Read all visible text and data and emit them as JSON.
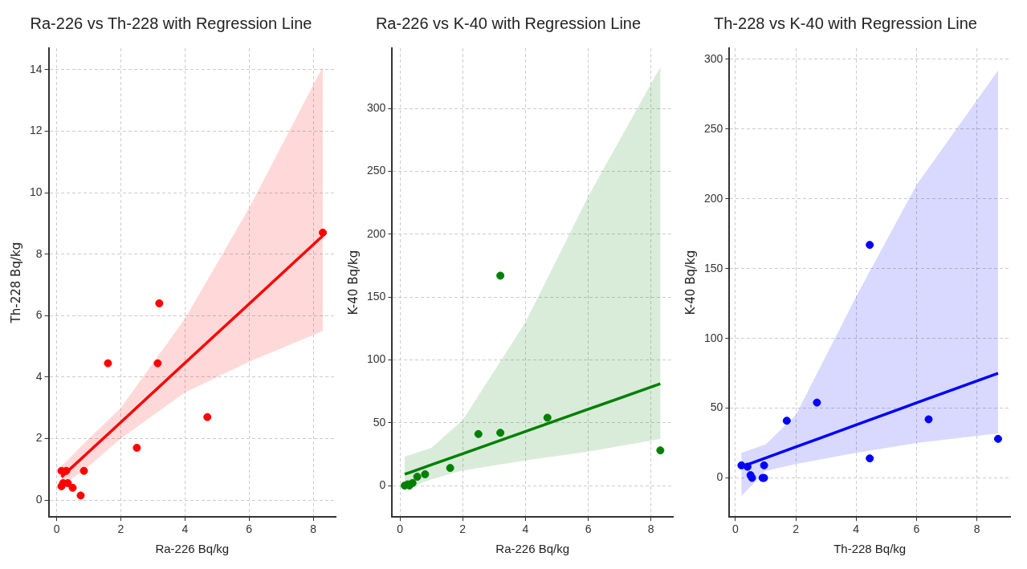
{
  "chart_data": [
    {
      "type": "scatter",
      "title": "Ra-226 vs Th-228 with Regression Line",
      "xlabel": "Ra-226 Bq/kg",
      "ylabel": "Th-228 Bq/kg",
      "xlim": [
        -0.25,
        8.7
      ],
      "ylim": [
        -0.55,
        14.7
      ],
      "xticks": [
        0,
        2,
        4,
        6,
        8
      ],
      "yticks": [
        0,
        2,
        4,
        6,
        8,
        10,
        12,
        14
      ],
      "grid": true,
      "legend": false,
      "series": [
        {
          "type": "scatter",
          "marker": "circle",
          "color": "#ff0000",
          "x": [
            8.3,
            3.2,
            1.6,
            3.15,
            4.7,
            2.5,
            0.85,
            0.75,
            0.5,
            0.35,
            0.15,
            0.3,
            0.15,
            0.2
          ],
          "values": [
            8.7,
            6.4,
            4.45,
            4.45,
            2.7,
            1.7,
            0.95,
            0.15,
            0.4,
            0.55,
            0.95,
            0.95,
            0.45,
            0.55
          ]
        },
        {
          "type": "line",
          "color": "#ff0000",
          "x": [
            0.15,
            1,
            2,
            4,
            6,
            8.3
          ],
          "values": [
            0.75,
            1.57,
            2.53,
            4.46,
            6.38,
            8.6
          ],
          "lower": [
            0.45,
            1.1,
            2.0,
            3.5,
            4.5,
            5.5
          ],
          "upper": [
            1.1,
            2.0,
            3.0,
            5.9,
            9.5,
            14.1
          ]
        }
      ]
    },
    {
      "type": "scatter",
      "title": "Ra-226 vs K-40 with Regression Line",
      "xlabel": "Ra-226 Bq/kg",
      "ylabel": "K-40 Bq/kg",
      "xlim": [
        -0.25,
        8.7
      ],
      "ylim": [
        -25,
        348
      ],
      "xticks": [
        0,
        2,
        4,
        6,
        8
      ],
      "yticks": [
        0,
        50,
        100,
        150,
        200,
        250,
        300
      ],
      "grid": true,
      "legend": false,
      "series": [
        {
          "type": "scatter",
          "marker": "circle",
          "color": "#008000",
          "x": [
            8.3,
            3.2,
            4.7,
            3.2,
            2.5,
            1.6,
            0.8,
            0.55,
            0.4,
            0.3,
            0.15,
            0.25
          ],
          "values": [
            28,
            167,
            54,
            42,
            41,
            14,
            9,
            7,
            2,
            0,
            0,
            1
          ]
        },
        {
          "type": "line",
          "color": "#008000",
          "x": [
            0.15,
            1,
            2,
            4,
            6,
            8.3
          ],
          "values": [
            9,
            16.5,
            25.3,
            43,
            60.7,
            81
          ],
          "lower": [
            -3,
            5,
            12,
            20,
            27,
            37
          ],
          "upper": [
            23,
            30,
            52,
            130,
            230,
            333
          ]
        }
      ]
    },
    {
      "type": "scatter",
      "title": "Th-228 vs K-40 with Regression Line",
      "xlabel": "Th-228 Bq/kg",
      "ylabel": "K-40 Bq/kg",
      "xlim": [
        -0.2,
        9.1
      ],
      "ylim": [
        -28,
        308
      ],
      "xticks": [
        0,
        2,
        4,
        6,
        8
      ],
      "yticks": [
        0,
        50,
        100,
        150,
        200,
        250,
        300
      ],
      "grid": true,
      "legend": false,
      "series": [
        {
          "type": "scatter",
          "marker": "circle",
          "color": "#0000ff",
          "x": [
            8.7,
            6.4,
            4.45,
            4.45,
            2.7,
            1.7,
            0.95,
            0.95,
            0.9,
            0.2,
            0.4,
            0.55,
            0.5
          ],
          "values": [
            28,
            42,
            167,
            14,
            54,
            41,
            9,
            0,
            0,
            9,
            8,
            0,
            2
          ]
        },
        {
          "type": "line",
          "color": "#0000ff",
          "x": [
            0.2,
            1,
            2,
            4,
            6,
            8.7
          ],
          "values": [
            8,
            14.3,
            22.2,
            38,
            53.8,
            75
          ],
          "lower": [
            -13,
            5,
            10,
            18,
            25,
            32
          ],
          "upper": [
            18,
            24,
            45,
            130,
            210,
            292
          ]
        }
      ]
    }
  ]
}
